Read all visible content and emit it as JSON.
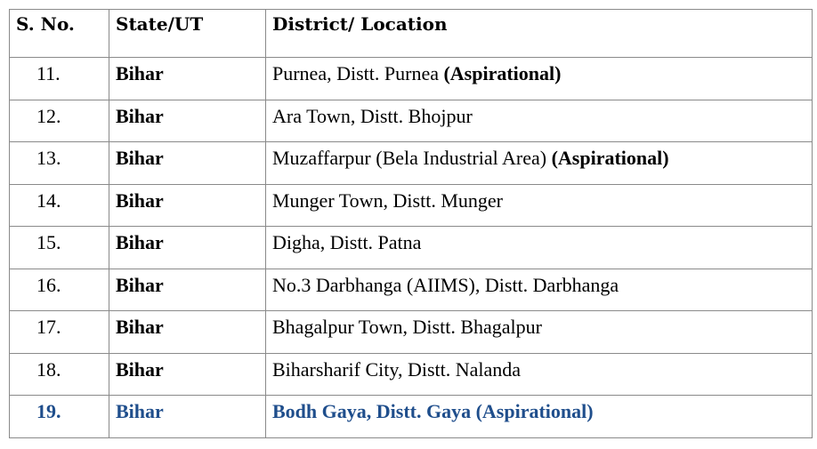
{
  "header": {
    "sno": "S. No.",
    "state": "State/UT",
    "district": "District/ Location"
  },
  "highlight_color": "#1f4e8c",
  "rows": [
    {
      "sno": "11.",
      "state": "Bihar",
      "district": "Purnea, Distt. Purnea ",
      "tag": "(Aspirational)"
    },
    {
      "sno": "12.",
      "state": "Bihar",
      "district": "Ara Town, Distt. Bhojpur",
      "tag": ""
    },
    {
      "sno": "13.",
      "state": "Bihar",
      "district": "Muzaffarpur (Bela Industrial Area) ",
      "tag": "(Aspirational)"
    },
    {
      "sno": "14.",
      "state": "Bihar",
      "district": "Munger Town, Distt. Munger",
      "tag": ""
    },
    {
      "sno": "15.",
      "state": "Bihar",
      "district": "Digha, Distt. Patna",
      "tag": ""
    },
    {
      "sno": "16.",
      "state": "Bihar",
      "district": "No.3 Darbhanga (AIIMS), Distt. Darbhanga",
      "tag": ""
    },
    {
      "sno": "17.",
      "state": "Bihar",
      "district": "Bhagalpur Town, Distt. Bhagalpur",
      "tag": ""
    },
    {
      "sno": "18.",
      "state": "Bihar",
      "district": "Biharsharif City, Distt. Nalanda",
      "tag": ""
    },
    {
      "sno": "19.",
      "state": "Bihar",
      "district": "Bodh Gaya, Distt. Gaya (Aspirational)",
      "tag": "",
      "highlighted": true
    }
  ]
}
